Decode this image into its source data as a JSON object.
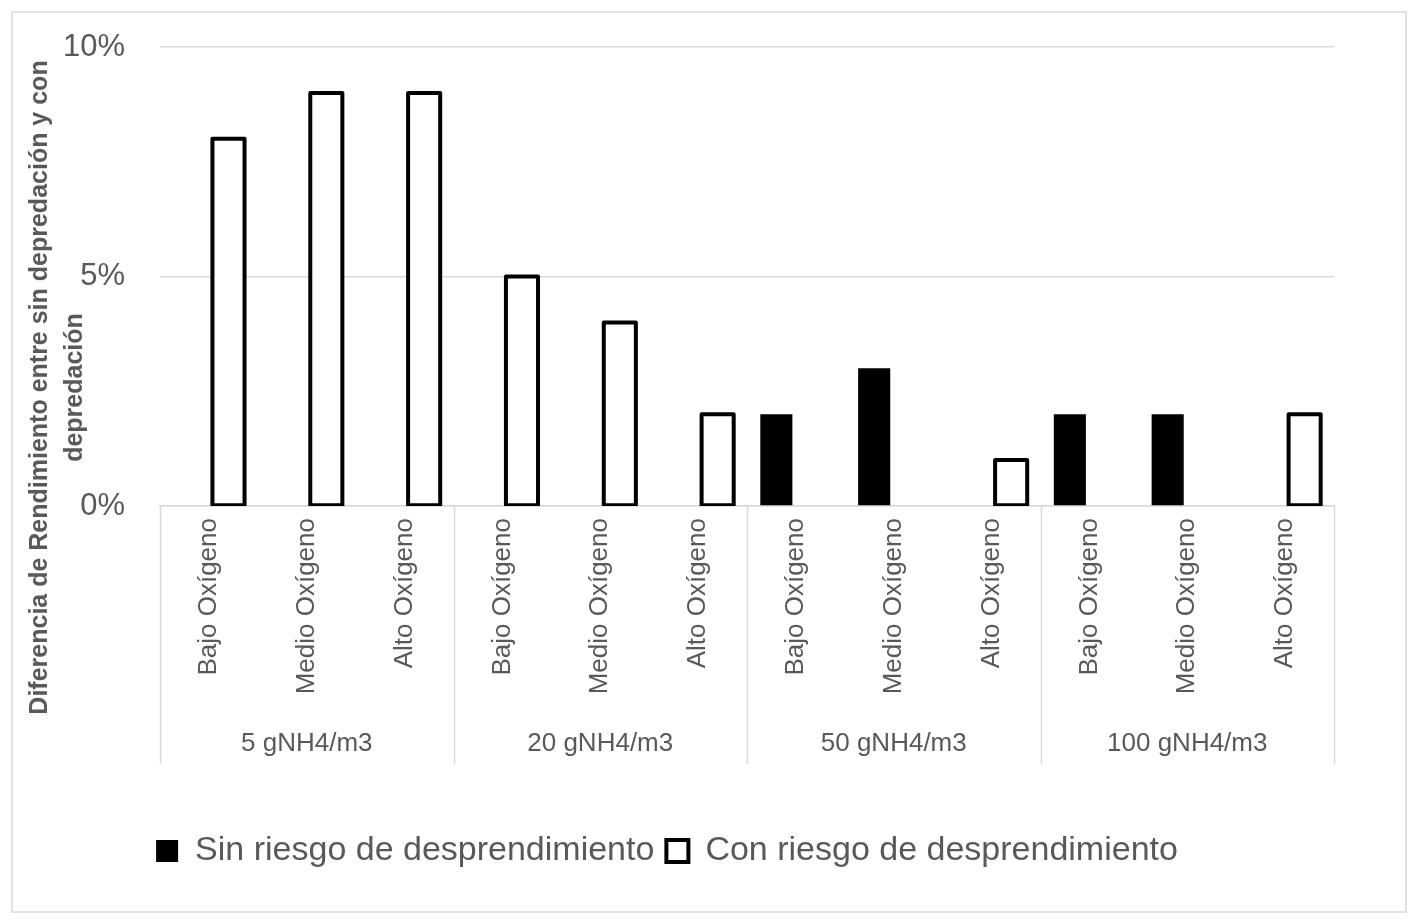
{
  "chart_data": {
    "type": "bar",
    "categories": [
      "Bajo Oxígeno",
      "Medio Oxígeno",
      "Alto Oxígeno",
      "Bajo Oxígeno",
      "Medio Oxígeno",
      "Alto Oxígeno",
      "Bajo Oxígeno",
      "Medio Oxígeno",
      "Alto Oxígeno",
      "Bajo Oxígeno",
      "Medio Oxígeno",
      "Alto Oxígeno"
    ],
    "series": [
      {
        "name": "Sin riesgo de desprendimiento",
        "color": "#000000",
        "values": [
          null,
          null,
          null,
          null,
          null,
          null,
          2,
          3,
          null,
          2,
          2,
          null
        ]
      },
      {
        "name": "Con riesgo de desprendimiento",
        "color": "#ffffff",
        "values": [
          8,
          9,
          9,
          5,
          4,
          2,
          null,
          null,
          1,
          null,
          null,
          2
        ]
      }
    ],
    "ylabel": "Diferencia de Rendimiento entre sin depredación y con depredación",
    "annotations": [
      "5 gNH4/m3",
      "20 gNH4/m3",
      "50 gNH4/m3",
      "100 gNH4/m3"
    ],
    "ylim": [
      0,
      10
    ],
    "yticks": [
      {
        "value": 0,
        "label": "0%"
      },
      {
        "value": 5,
        "label": "5%"
      },
      {
        "value": 10,
        "label": "10%"
      }
    ],
    "grid": "y",
    "legend": "bottom"
  }
}
